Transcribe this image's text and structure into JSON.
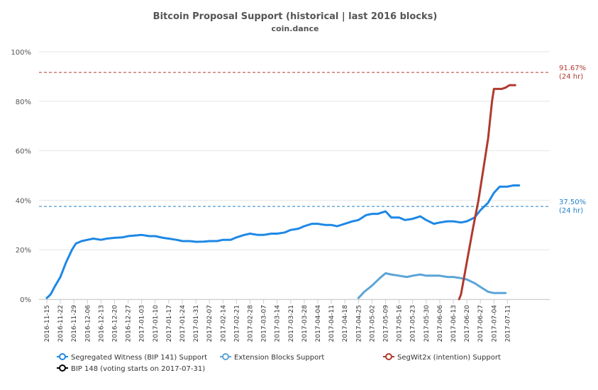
{
  "chart_data": {
    "type": "line",
    "title": "Bitcoin Proposal Support (historical | last 2016 blocks)",
    "subtitle": "coin.dance",
    "ylim": [
      0,
      100
    ],
    "yticks": [
      "0%",
      "20%",
      "40%",
      "60%",
      "80%",
      "100%"
    ],
    "x_tick_labels": [
      "2016-11-15",
      "2016-11-22",
      "2016-11-29",
      "2016-12-06",
      "2016-12-13",
      "2016-12-20",
      "2016-12-27",
      "2017-01-03",
      "2017-01-10",
      "2017-01-17",
      "2017-01-24",
      "2017-01-31",
      "2017-02-07",
      "2017-02-14",
      "2017-02-21",
      "2017-02-28",
      "2017-03-07",
      "2017-03-14",
      "2017-03-21",
      "2017-03-28",
      "2017-04-04",
      "2017-04-11",
      "2017-04-18",
      "2017-04-25",
      "2017-05-02",
      "2017-05-09",
      "2017-05-16",
      "2017-05-23",
      "2017-05-30",
      "2017-06-06",
      "2017-06-13",
      "2017-06-20",
      "2017-06-27",
      "2017-07-04",
      "2017-07-11"
    ],
    "grid": true,
    "legend_position": "bottom",
    "thresholds": [
      {
        "value": 91.67,
        "label": "91.67%",
        "sublabel": "(24 hr)",
        "color": "#b03a2e"
      },
      {
        "value": 37.5,
        "label": "37.50%",
        "sublabel": "(24 hr)",
        "color": "#1e7fc9"
      }
    ],
    "series": [
      {
        "name": "Segregated Witness (BIP 141) Support",
        "color": "#1e88e5",
        "points": [
          [
            "2016-11-15",
            0.5
          ],
          [
            "2016-11-17",
            2
          ],
          [
            "2016-11-19",
            5
          ],
          [
            "2016-11-22",
            9
          ],
          [
            "2016-11-25",
            15
          ],
          [
            "2016-11-28",
            20
          ],
          [
            "2016-11-30",
            22.5
          ],
          [
            "2016-12-03",
            23.5
          ],
          [
            "2016-12-06",
            24
          ],
          [
            "2016-12-09",
            24.5
          ],
          [
            "2016-12-13",
            24
          ],
          [
            "2016-12-16",
            24.5
          ],
          [
            "2016-12-20",
            24.8
          ],
          [
            "2016-12-24",
            25
          ],
          [
            "2016-12-27",
            25.5
          ],
          [
            "2016-12-31",
            25.8
          ],
          [
            "2017-01-03",
            26
          ],
          [
            "2017-01-07",
            25.5
          ],
          [
            "2017-01-10",
            25.5
          ],
          [
            "2017-01-14",
            24.8
          ],
          [
            "2017-01-17",
            24.5
          ],
          [
            "2017-01-21",
            24
          ],
          [
            "2017-01-24",
            23.5
          ],
          [
            "2017-01-28",
            23.5
          ],
          [
            "2017-01-31",
            23.2
          ],
          [
            "2017-02-04",
            23.3
          ],
          [
            "2017-02-07",
            23.5
          ],
          [
            "2017-02-11",
            23.5
          ],
          [
            "2017-02-14",
            24
          ],
          [
            "2017-02-18",
            24
          ],
          [
            "2017-02-21",
            25
          ],
          [
            "2017-02-25",
            26
          ],
          [
            "2017-02-28",
            26.5
          ],
          [
            "2017-03-04",
            26
          ],
          [
            "2017-03-07",
            26
          ],
          [
            "2017-03-11",
            26.5
          ],
          [
            "2017-03-14",
            26.5
          ],
          [
            "2017-03-18",
            27
          ],
          [
            "2017-03-21",
            28
          ],
          [
            "2017-03-25",
            28.5
          ],
          [
            "2017-03-28",
            29.5
          ],
          [
            "2017-04-01",
            30.5
          ],
          [
            "2017-04-04",
            30.5
          ],
          [
            "2017-04-08",
            30
          ],
          [
            "2017-04-11",
            30
          ],
          [
            "2017-04-14",
            29.5
          ],
          [
            "2017-04-18",
            30.5
          ],
          [
            "2017-04-22",
            31.5
          ],
          [
            "2017-04-25",
            32
          ],
          [
            "2017-04-29",
            34
          ],
          [
            "2017-05-02",
            34.5
          ],
          [
            "2017-05-05",
            34.5
          ],
          [
            "2017-05-09",
            35.5
          ],
          [
            "2017-05-12",
            33
          ],
          [
            "2017-05-16",
            33
          ],
          [
            "2017-05-19",
            32
          ],
          [
            "2017-05-23",
            32.5
          ],
          [
            "2017-05-27",
            33.5
          ],
          [
            "2017-05-30",
            32
          ],
          [
            "2017-06-03",
            30.5
          ],
          [
            "2017-06-06",
            31
          ],
          [
            "2017-06-10",
            31.5
          ],
          [
            "2017-06-13",
            31.5
          ],
          [
            "2017-06-17",
            31
          ],
          [
            "2017-06-20",
            31.5
          ],
          [
            "2017-06-24",
            33
          ],
          [
            "2017-06-27",
            36
          ],
          [
            "2017-07-01",
            39
          ],
          [
            "2017-07-04",
            43
          ],
          [
            "2017-07-07",
            45.5
          ],
          [
            "2017-07-11",
            45.5
          ],
          [
            "2017-07-14",
            46
          ],
          [
            "2017-07-17",
            46
          ]
        ]
      },
      {
        "name": "Extension Blocks Support",
        "color": "#5ba4d6",
        "points": [
          [
            "2017-04-25",
            0.5
          ],
          [
            "2017-04-28",
            3
          ],
          [
            "2017-05-02",
            5.5
          ],
          [
            "2017-05-06",
            8.5
          ],
          [
            "2017-05-09",
            10.5
          ],
          [
            "2017-05-12",
            10
          ],
          [
            "2017-05-16",
            9.5
          ],
          [
            "2017-05-20",
            9
          ],
          [
            "2017-05-23",
            9.5
          ],
          [
            "2017-05-27",
            10
          ],
          [
            "2017-05-30",
            9.5
          ],
          [
            "2017-06-03",
            9.5
          ],
          [
            "2017-06-06",
            9.5
          ],
          [
            "2017-06-10",
            9
          ],
          [
            "2017-06-13",
            9
          ],
          [
            "2017-06-17",
            8.5
          ],
          [
            "2017-06-20",
            8
          ],
          [
            "2017-06-24",
            6.5
          ],
          [
            "2017-06-27",
            5
          ],
          [
            "2017-07-01",
            3
          ],
          [
            "2017-07-04",
            2.5
          ],
          [
            "2017-07-07",
            2.5
          ],
          [
            "2017-07-10",
            2.5
          ]
        ]
      },
      {
        "name": "SegWit2x (intention) Support",
        "color": "#b03a2e",
        "points": [
          [
            "2017-06-16",
            0
          ],
          [
            "2017-06-17",
            2
          ],
          [
            "2017-06-20",
            15
          ],
          [
            "2017-06-23",
            28
          ],
          [
            "2017-06-26",
            40
          ],
          [
            "2017-06-29",
            55
          ],
          [
            "2017-07-01",
            65
          ],
          [
            "2017-07-03",
            80
          ],
          [
            "2017-07-04",
            85
          ],
          [
            "2017-07-06",
            85
          ],
          [
            "2017-07-08",
            85
          ],
          [
            "2017-07-10",
            85.5
          ],
          [
            "2017-07-12",
            86.5
          ],
          [
            "2017-07-14",
            86.5
          ],
          [
            "2017-07-15",
            86.5
          ]
        ]
      },
      {
        "name": "BIP 148 (voting starts on 2017-07-31)",
        "color": "#000000",
        "points": []
      }
    ]
  }
}
